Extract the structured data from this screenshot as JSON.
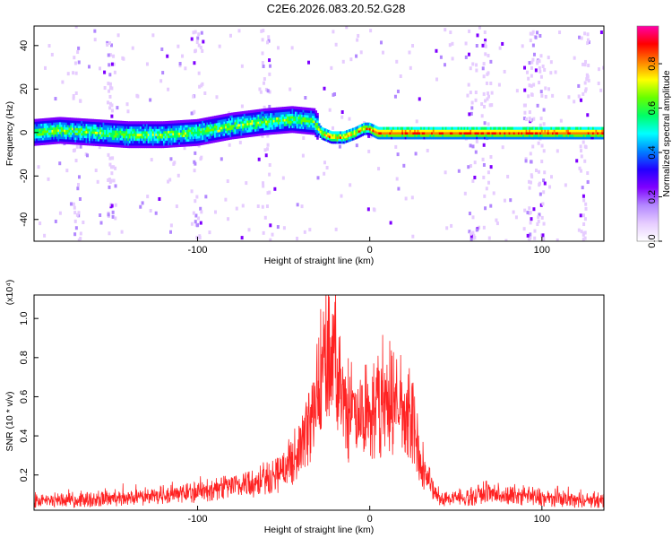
{
  "title": "C2E6.2026.083.20.52.G28",
  "chart_data": [
    {
      "type": "heatmap",
      "xlabel": "Height of straight line (km)",
      "ylabel": "Frequency (Hz)",
      "xlim": [
        -195,
        136
      ],
      "ylim": [
        -50,
        49
      ],
      "xticks": [
        -100,
        0,
        100
      ],
      "xtick_labels": [
        "-100",
        "0",
        "100"
      ],
      "yticks": [
        40,
        20,
        0,
        -20,
        -40
      ],
      "ytick_labels": [
        "40",
        "20",
        "0",
        "-20",
        "-40"
      ],
      "ridge": {
        "x": [
          -195,
          -180,
          -160,
          -140,
          -120,
          -100,
          -80,
          -60,
          -45,
          -32,
          -28,
          -22,
          -15,
          -8,
          -3,
          0,
          5,
          20,
          40,
          60,
          80,
          100,
          120,
          136
        ],
        "y": [
          0,
          1,
          0,
          -1,
          -1,
          0,
          3,
          5,
          6,
          5,
          0,
          -2,
          -2,
          0,
          2,
          2,
          0,
          0,
          0,
          0,
          0,
          0,
          0,
          0
        ]
      },
      "colorbar": {
        "label": "Normalized spectral amplitude",
        "range": [
          0,
          0.97
        ],
        "ticks": [
          0,
          0.2,
          0.4,
          0.6,
          0.8
        ],
        "tick_labels": [
          "0.0",
          "0.2",
          "0.4",
          "0.6",
          "0.8"
        ],
        "colors": [
          "#ffffff",
          "#e6ccff",
          "#b388ff",
          "#7f00ff",
          "#2200ff",
          "#0080ff",
          "#00ffff",
          "#00ff66",
          "#66ff00",
          "#ffff00",
          "#ff8000",
          "#ff0000",
          "#ff00aa"
        ]
      }
    },
    {
      "type": "line",
      "xlabel": "Height of straight line (km)",
      "ylabel": "SNR (10 * v/v)",
      "y_multiplier": "(x10⁴)",
      "xlim": [
        -195,
        136
      ],
      "ylim": [
        0.02,
        1.12
      ],
      "xticks": [
        -100,
        0,
        100
      ],
      "xtick_labels": [
        "-100",
        "0",
        "100"
      ],
      "yticks": [
        1.0,
        0.8,
        0.6,
        0.4,
        0.2
      ],
      "ytick_labels": [
        "1.0",
        "0.8",
        "0.6",
        "0.4",
        "0.2"
      ],
      "line_color": "#ff2222",
      "envelope": {
        "x": [
          -195,
          -170,
          -150,
          -120,
          -100,
          -80,
          -60,
          -50,
          -40,
          -35,
          -30,
          -25,
          -20,
          -15,
          -10,
          -5,
          0,
          5,
          10,
          15,
          20,
          25,
          30,
          35,
          38,
          42,
          50,
          60,
          70,
          80,
          90,
          100,
          110,
          120,
          136
        ],
        "y": [
          0.06,
          0.07,
          0.08,
          0.1,
          0.12,
          0.16,
          0.2,
          0.26,
          0.4,
          0.55,
          0.7,
          0.85,
          0.9,
          0.6,
          0.55,
          0.5,
          0.55,
          0.6,
          0.62,
          0.6,
          0.55,
          0.45,
          0.3,
          0.18,
          0.1,
          0.08,
          0.08,
          0.09,
          0.12,
          0.09,
          0.1,
          0.08,
          0.08,
          0.07,
          0.06
        ]
      }
    }
  ]
}
